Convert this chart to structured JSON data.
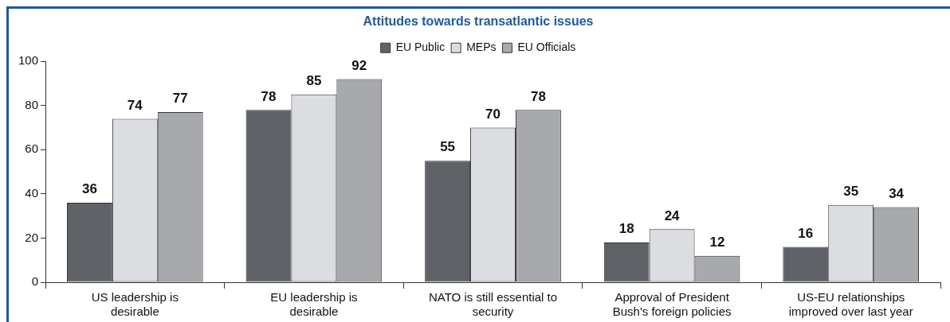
{
  "chart_data": {
    "type": "bar",
    "title": "Attitudes towards transatlantic issues",
    "categories": [
      "US leadership is desirable",
      "EU leadership is desirable",
      "NATO is still essential to security",
      "Approval of President Bush's foreign policies",
      "US-EU relationships improved over last year"
    ],
    "series": [
      {
        "name": "EU Public",
        "color": "#5f6266",
        "values": [
          36,
          78,
          55,
          18,
          16
        ]
      },
      {
        "name": "MEPs",
        "color": "#dcdde0",
        "values": [
          74,
          85,
          70,
          24,
          35
        ]
      },
      {
        "name": "EU Officials",
        "color": "#a7a9ad",
        "values": [
          77,
          92,
          78,
          12,
          34
        ]
      }
    ],
    "ylim": [
      0,
      100
    ],
    "yticks": [
      0,
      20,
      40,
      60,
      80,
      100
    ],
    "grid": false,
    "legend": "top",
    "data_labels": true
  }
}
